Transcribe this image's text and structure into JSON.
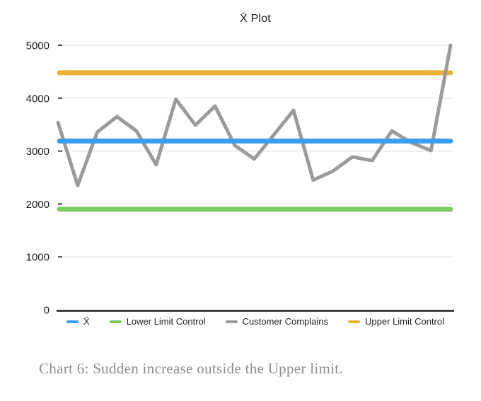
{
  "chart": {
    "title": "X̄ Plot",
    "caption": "Chart 6: Sudden increase outside the Upper limit."
  },
  "legend": {
    "items": [
      {
        "label": "X̄",
        "color": "#3B9DEB"
      },
      {
        "label": "Lower Limit Control",
        "color": "#7CCB5E"
      },
      {
        "label": "Customer Complains",
        "color": "#9B9B9B"
      },
      {
        "label": "Upper Limit Control",
        "color": "#EBB234"
      }
    ]
  },
  "chart_data": {
    "type": "line",
    "title": "X̄ Plot",
    "xlabel": "",
    "ylabel": "",
    "ylim": [
      0,
      5000
    ],
    "yticks": [
      0,
      1000,
      2000,
      3000,
      4000,
      5000
    ],
    "grid": true,
    "legend_position": "bottom",
    "x": [
      1,
      2,
      3,
      4,
      5,
      6,
      7,
      8,
      9,
      10,
      11,
      12,
      13,
      14,
      15,
      16,
      17,
      18,
      19,
      20,
      21
    ],
    "series": [
      {
        "name": "Customer Complains",
        "kind": "data",
        "color": "#9B9B9B",
        "values": [
          3540,
          2350,
          3360,
          3650,
          3380,
          2740,
          3980,
          3490,
          3850,
          3110,
          2850,
          3310,
          3770,
          2450,
          2620,
          2890,
          2820,
          3380,
          3160,
          3010,
          5000
        ]
      },
      {
        "name": "X̄",
        "kind": "reference-line",
        "color": "#3B9DEB",
        "value": 3190
      },
      {
        "name": "Lower Limit Control",
        "kind": "reference-line",
        "color": "#7CCB5E",
        "value": 1900
      },
      {
        "name": "Upper Limit Control",
        "kind": "reference-line",
        "color": "#EBB234",
        "value": 4480
      }
    ],
    "colors": {
      "grid_line": "#E2E2E2",
      "tick_mark": "#444444",
      "axis_line": "#1A1A1A",
      "tick_label": "#1A1A1A"
    }
  }
}
